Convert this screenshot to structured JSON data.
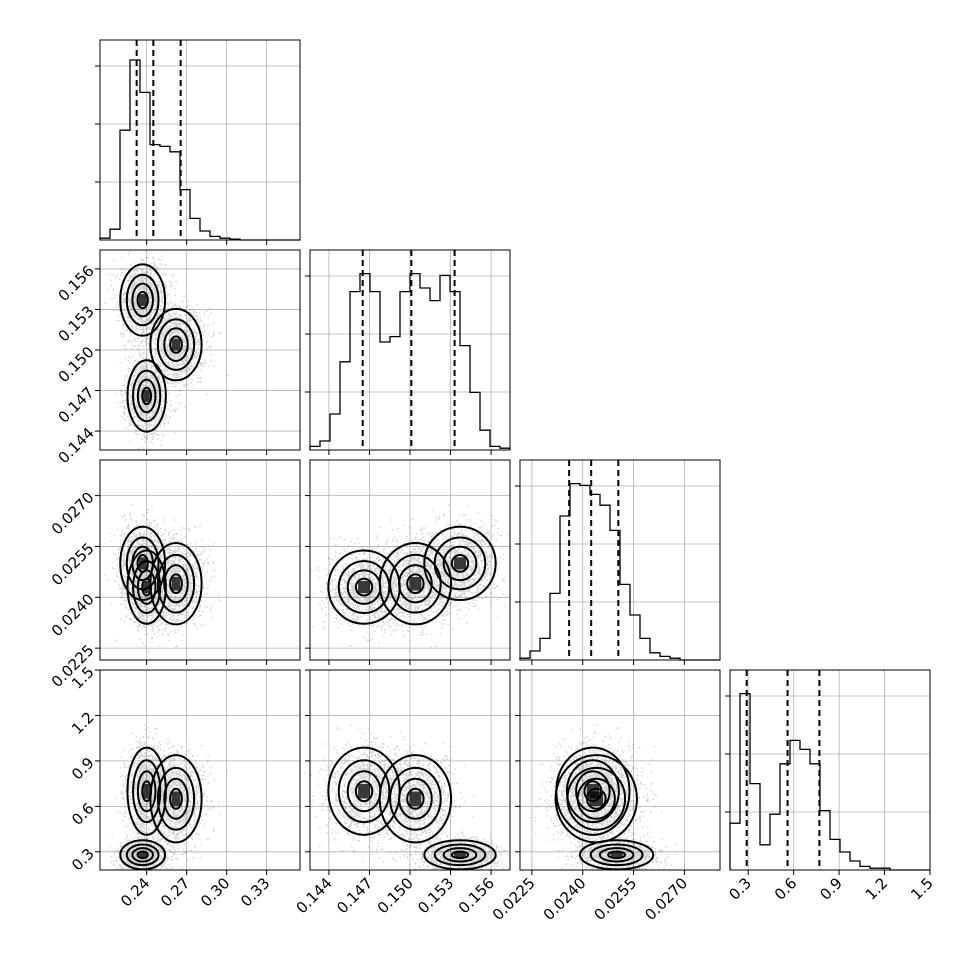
{
  "chart_data": {
    "type": "corner",
    "n_params": 4,
    "labels": [
      "",
      "",
      "",
      ""
    ],
    "ticks": [
      {
        "values": [
          0.24,
          0.27,
          0.3,
          0.33
        ],
        "labels": [
          "0.24",
          "0.27",
          "0.30",
          "0.33"
        ],
        "range": [
          0.205,
          0.355
        ]
      },
      {
        "values": [
          0.144,
          0.147,
          0.15,
          0.153,
          0.156
        ],
        "labels": [
          "0.144",
          "0.147",
          "0.150",
          "0.153",
          "0.156"
        ],
        "range": [
          0.1426,
          0.1574
        ]
      },
      {
        "values": [
          0.0225,
          0.024,
          0.0255,
          0.027
        ],
        "labels": [
          "0.0225",
          "0.0240",
          "0.0255",
          "0.0270"
        ],
        "range": [
          0.02215,
          0.02805
        ]
      },
      {
        "values": [
          0.3,
          0.6,
          0.9,
          1.2,
          1.5
        ],
        "labels": [
          "0.3",
          "0.6",
          "0.9",
          "1.2",
          "1.5"
        ],
        "range": [
          0.18,
          1.5
        ]
      }
    ],
    "histograms": [
      {
        "edges_range": [
          0.205,
          0.355
        ],
        "counts": [
          0.01,
          0.06,
          0.61,
          1.0,
          0.82,
          0.53,
          0.52,
          0.49,
          0.28,
          0.12,
          0.05,
          0.02,
          0.01,
          0.005,
          0.0,
          0.0,
          0.0,
          0.0,
          0.0,
          0.0
        ],
        "quantiles": [
          0.2325,
          0.245,
          0.2655
        ]
      },
      {
        "edges_range": [
          0.1426,
          0.1574
        ],
        "counts": [
          0.02,
          0.05,
          0.2,
          0.49,
          0.88,
          0.98,
          0.88,
          0.6,
          0.63,
          0.88,
          0.98,
          0.9,
          0.83,
          0.97,
          0.88,
          0.58,
          0.32,
          0.11,
          0.02,
          0.01
        ],
        "quantiles": [
          0.1465,
          0.1501,
          0.1533
        ]
      },
      {
        "edges_range": [
          0.02215,
          0.02805
        ],
        "counts": [
          0.01,
          0.05,
          0.12,
          0.37,
          0.8,
          0.98,
          0.97,
          0.92,
          0.86,
          0.72,
          0.42,
          0.25,
          0.12,
          0.04,
          0.02,
          0.01,
          0.0,
          0.0,
          0.0,
          0.0
        ],
        "quantiles": [
          0.0236,
          0.02425,
          0.02505
        ]
      },
      {
        "edges_range": [
          0.18,
          1.5
        ],
        "counts": [
          0.26,
          0.98,
          0.48,
          0.14,
          0.31,
          0.59,
          0.72,
          0.67,
          0.59,
          0.33,
          0.17,
          0.1,
          0.05,
          0.02,
          0.01,
          0.01,
          0.0,
          0.0,
          0.0,
          0.0
        ],
        "quantiles": [
          0.29,
          0.56,
          0.77
        ]
      }
    ],
    "modes": [
      {
        "mean": [
          0.237,
          0.1537,
          0.025,
          0.28
        ],
        "std": [
          0.007,
          0.0011,
          0.00045,
          0.04
        ],
        "weight": 0.34
      },
      {
        "mean": [
          0.24,
          0.1466,
          0.0243,
          0.7
        ],
        "std": [
          0.006,
          0.0011,
          0.00045,
          0.12
        ],
        "weight": 0.33
      },
      {
        "mean": [
          0.262,
          0.1504,
          0.0244,
          0.65
        ],
        "std": [
          0.008,
          0.0011,
          0.0005,
          0.12
        ],
        "weight": 0.33
      }
    ],
    "grid": true,
    "colors": {
      "points": "#000000",
      "density": "#000000",
      "contour": "#000000",
      "grid": "#b0b0b0"
    }
  }
}
